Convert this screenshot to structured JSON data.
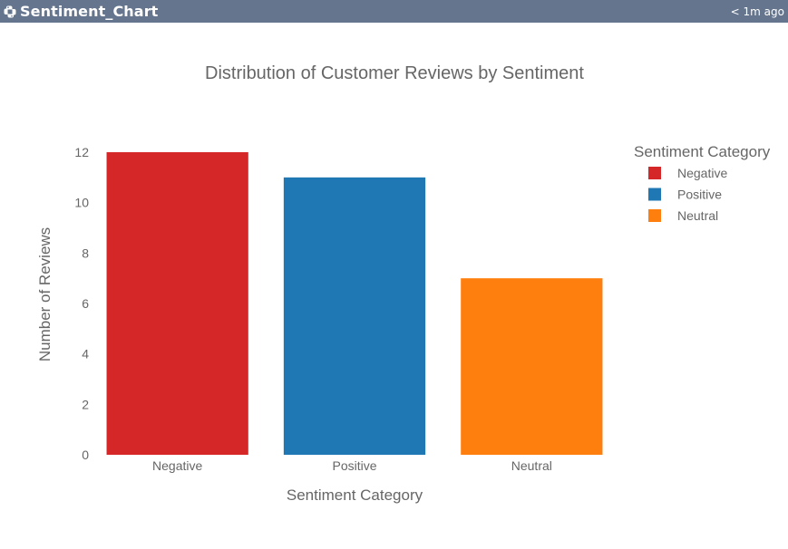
{
  "window": {
    "title": "Sentiment_Chart",
    "updated": "< 1m ago",
    "icon": "python-icon"
  },
  "colors": {
    "header_bg": "#64758d",
    "text": "#666666",
    "Negative": "#d62728",
    "Positive": "#1f77b4",
    "Neutral": "#ff7f0e"
  },
  "chart_data": {
    "type": "bar",
    "title": "Distribution of Customer Reviews by Sentiment",
    "xlabel": "Sentiment Category",
    "ylabel": "Number of Reviews",
    "categories": [
      "Negative",
      "Positive",
      "Neutral"
    ],
    "values": [
      12,
      11,
      7
    ],
    "ylim": [
      0,
      12
    ],
    "yticks": [
      0,
      2,
      4,
      6,
      8,
      10,
      12
    ],
    "grid": false,
    "legend": {
      "title": "Sentiment Category",
      "placement": "top-right",
      "entries": [
        "Negative",
        "Positive",
        "Neutral"
      ]
    }
  }
}
